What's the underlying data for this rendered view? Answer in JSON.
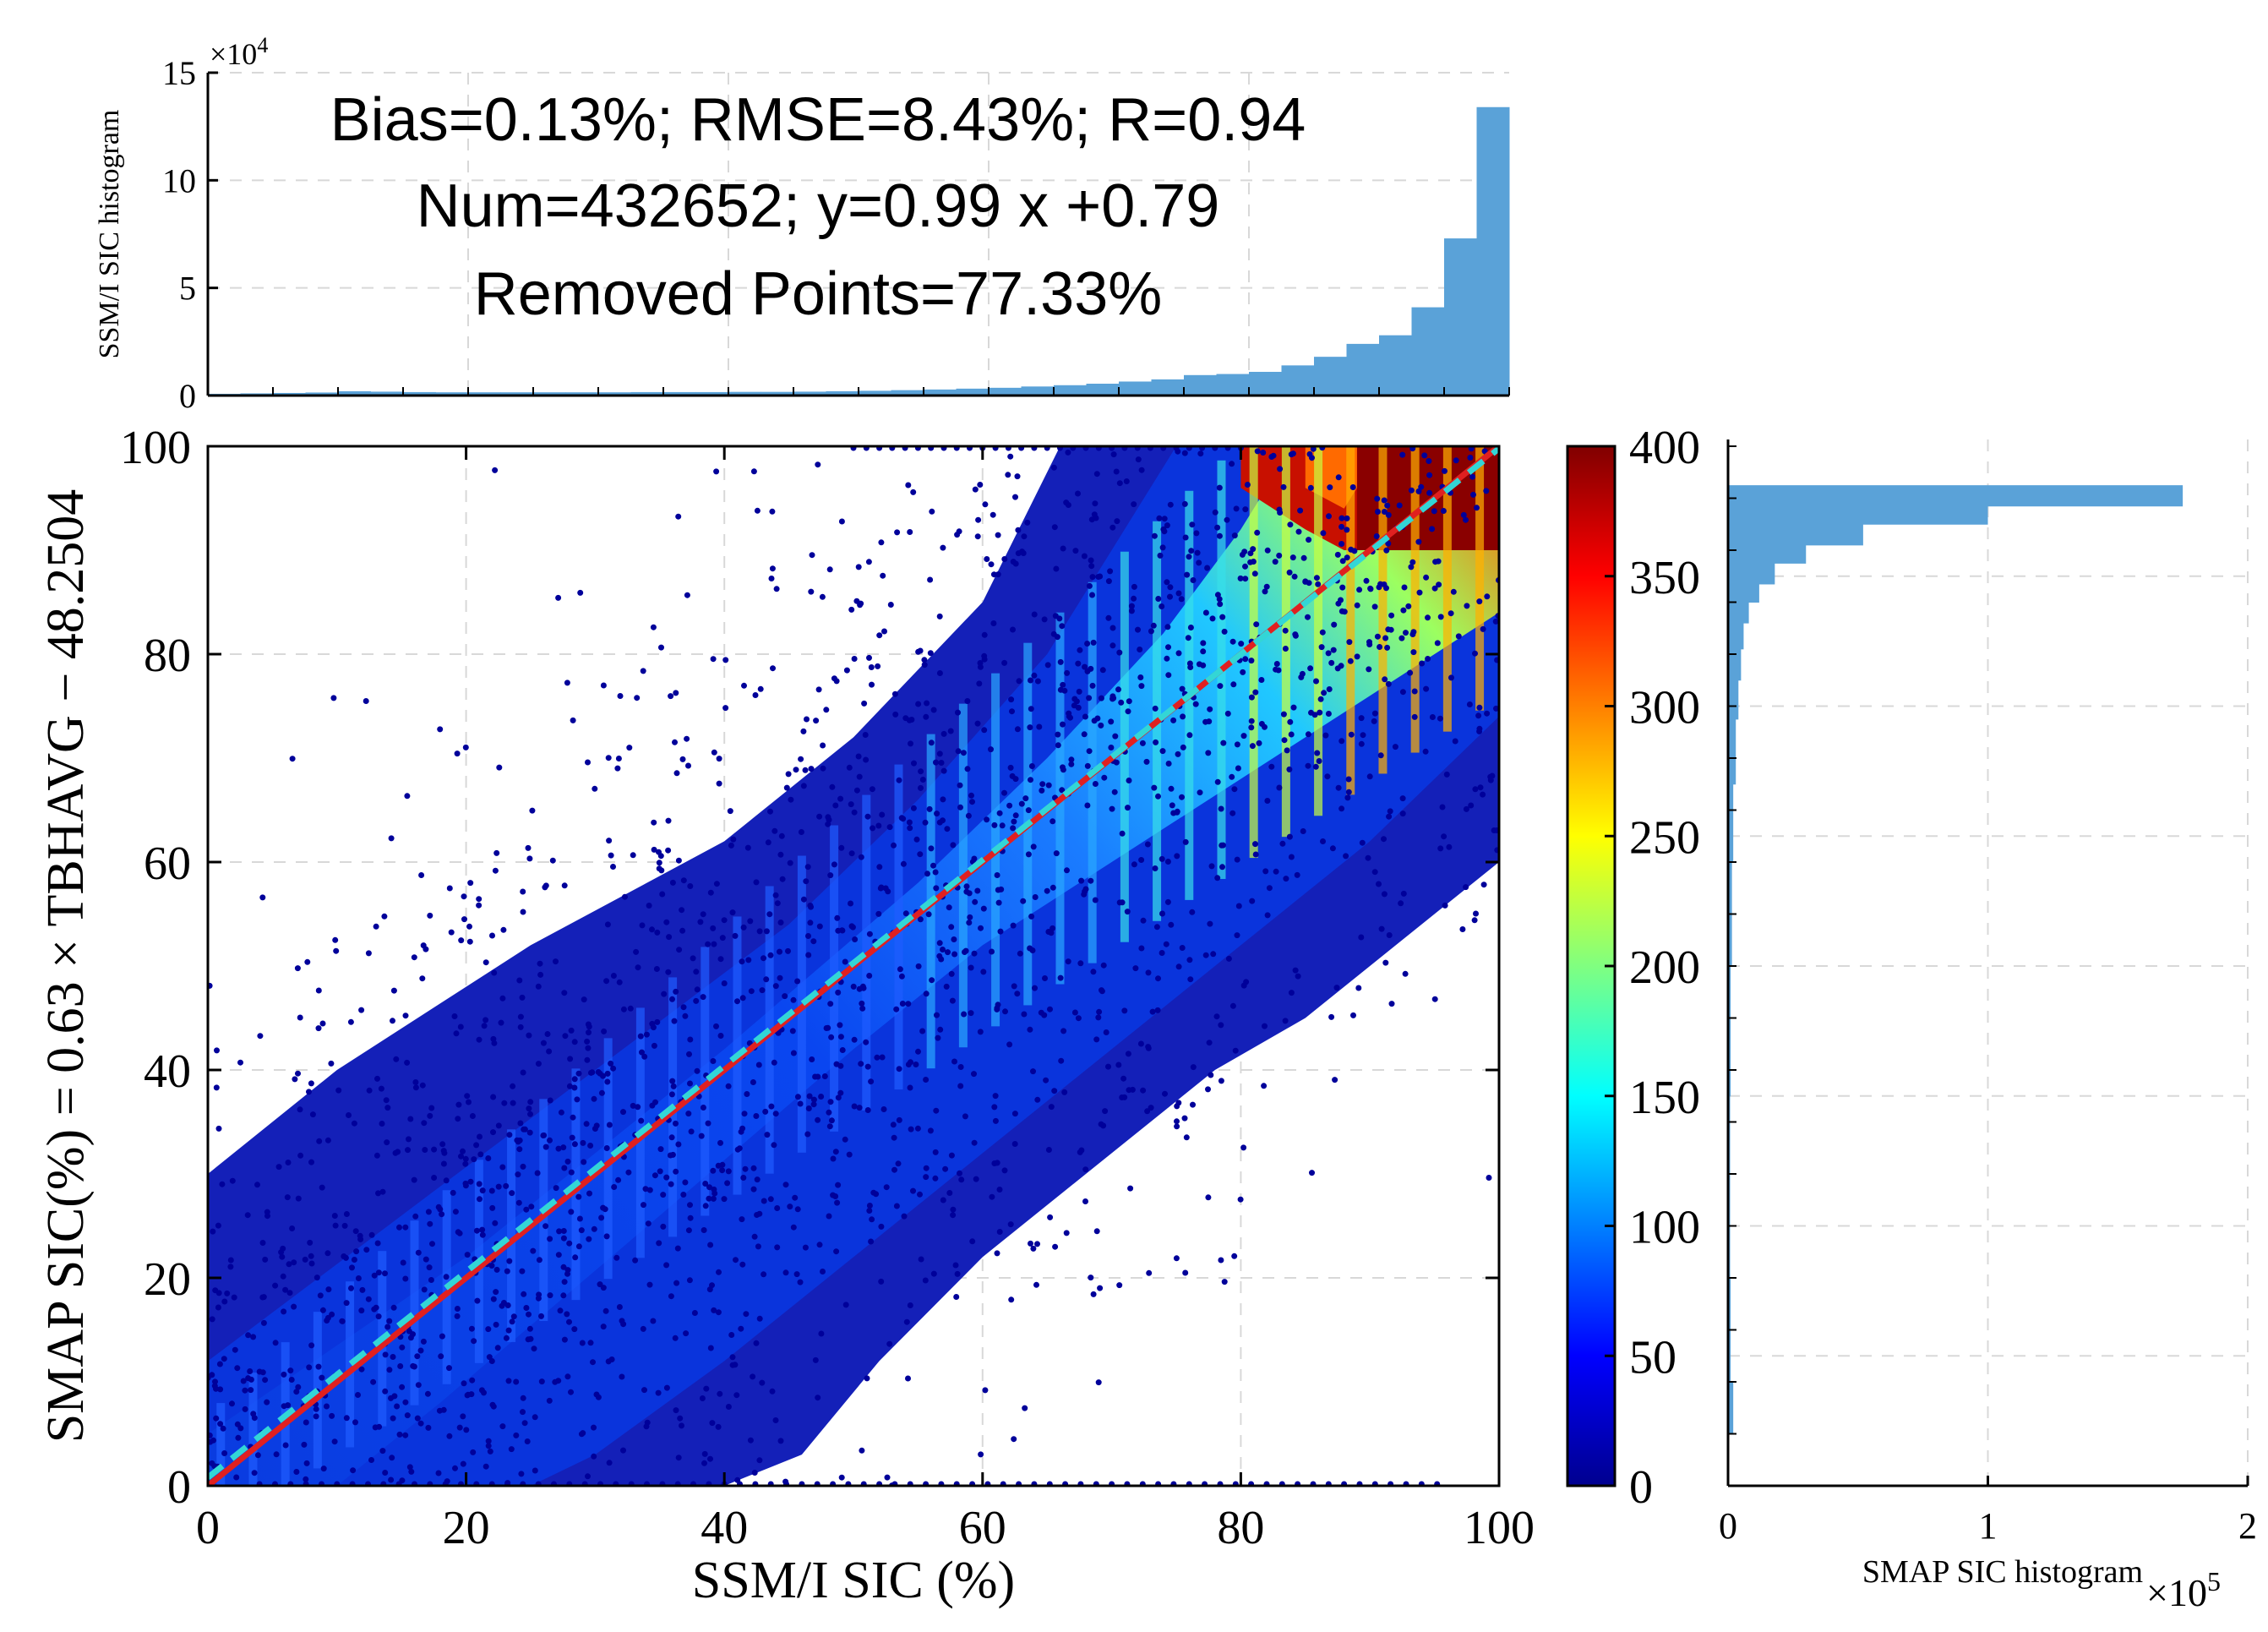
{
  "chart_data": [
    {
      "id": "top_hist",
      "type": "bar",
      "ylabel": "SSM/I SIC histogram",
      "y_multiplier": "×10",
      "y_multiplier_exp": "4",
      "ylim": [
        0,
        15
      ],
      "yticks": [
        "0",
        "5",
        "10",
        "15"
      ],
      "xlim": [
        0,
        100
      ],
      "bin_width": 2.5,
      "values": [
        0.08,
        0.1,
        0.12,
        0.14,
        0.2,
        0.18,
        0.16,
        0.15,
        0.15,
        0.15,
        0.15,
        0.15,
        0.15,
        0.16,
        0.16,
        0.16,
        0.17,
        0.17,
        0.18,
        0.2,
        0.22,
        0.25,
        0.28,
        0.32,
        0.36,
        0.42,
        0.48,
        0.55,
        0.65,
        0.75,
        0.95,
        1.0,
        1.1,
        1.4,
        1.8,
        2.4,
        2.8,
        4.1,
        7.3,
        13.4
      ],
      "stats": {
        "line1": "Bias=0.13%; RMSE=8.43%; R=0.94",
        "line2": "Num=432652; y=0.99 x +0.79",
        "line3": "Removed Points=77.33%"
      }
    },
    {
      "id": "scatter_density",
      "type": "scatter",
      "xlabel": "SSM/I SIC (%)",
      "ylabel": "SMAP SIC(%) = 0.63 × TBHAVG −  48.2504",
      "xlim": [
        0,
        100
      ],
      "ylim": [
        0,
        100
      ],
      "xticks": [
        "0",
        "20",
        "40",
        "60",
        "80",
        "100"
      ],
      "yticks": [
        "0",
        "20",
        "40",
        "60",
        "80",
        "100"
      ],
      "lines": [
        {
          "name": "1:1 line",
          "slope": 1,
          "intercept": 0,
          "color": "#e02020",
          "style": "solid"
        },
        {
          "name": "fit",
          "slope": 0.99,
          "intercept": 0.79,
          "color": "#33d6d6",
          "style": "dashed"
        }
      ],
      "note": "density-colored scatter of SMAP SIC vs SSM/I SIC"
    },
    {
      "id": "colorbar",
      "type": "colorbar",
      "range": [
        0,
        400
      ],
      "ticks": [
        "0",
        "50",
        "100",
        "150",
        "200",
        "250",
        "300",
        "350",
        "400"
      ],
      "colormap": [
        "#00008f",
        "#0000ff",
        "#0080ff",
        "#00ffff",
        "#80ff80",
        "#ffff00",
        "#ff8000",
        "#ff0000",
        "#800000"
      ]
    },
    {
      "id": "right_hist",
      "type": "bar",
      "orientation": "horizontal",
      "xlabel": "SMAP SIC histogram",
      "x_multiplier": "×10",
      "x_multiplier_exp": "5",
      "xlim": [
        0,
        2
      ],
      "xticks": [
        "0",
        "1",
        "2"
      ],
      "ylim": [
        0,
        400
      ],
      "y_axis_units": "colorbar-aligned",
      "bins": [
        {
          "y0": 20,
          "y1": 40,
          "v": 0.02
        },
        {
          "y0": 40,
          "y1": 80,
          "v": 0.01
        },
        {
          "y0": 80,
          "y1": 150,
          "v": 0.008
        },
        {
          "y0": 150,
          "y1": 200,
          "v": 0.01
        },
        {
          "y0": 200,
          "y1": 240,
          "v": 0.015
        },
        {
          "y0": 240,
          "y1": 270,
          "v": 0.02
        },
        {
          "y0": 270,
          "y1": 295,
          "v": 0.03
        },
        {
          "y0": 295,
          "y1": 310,
          "v": 0.04
        },
        {
          "y0": 310,
          "y1": 322,
          "v": 0.05
        },
        {
          "y0": 322,
          "y1": 332,
          "v": 0.06
        },
        {
          "y0": 332,
          "y1": 340,
          "v": 0.08
        },
        {
          "y0": 340,
          "y1": 347,
          "v": 0.12
        },
        {
          "y0": 347,
          "y1": 355,
          "v": 0.18
        },
        {
          "y0": 355,
          "y1": 362,
          "v": 0.3
        },
        {
          "y0": 362,
          "y1": 370,
          "v": 0.52
        },
        {
          "y0": 370,
          "y1": 377,
          "v": 1.0
        },
        {
          "y0": 377,
          "y1": 385,
          "v": 1.75
        }
      ]
    }
  ]
}
